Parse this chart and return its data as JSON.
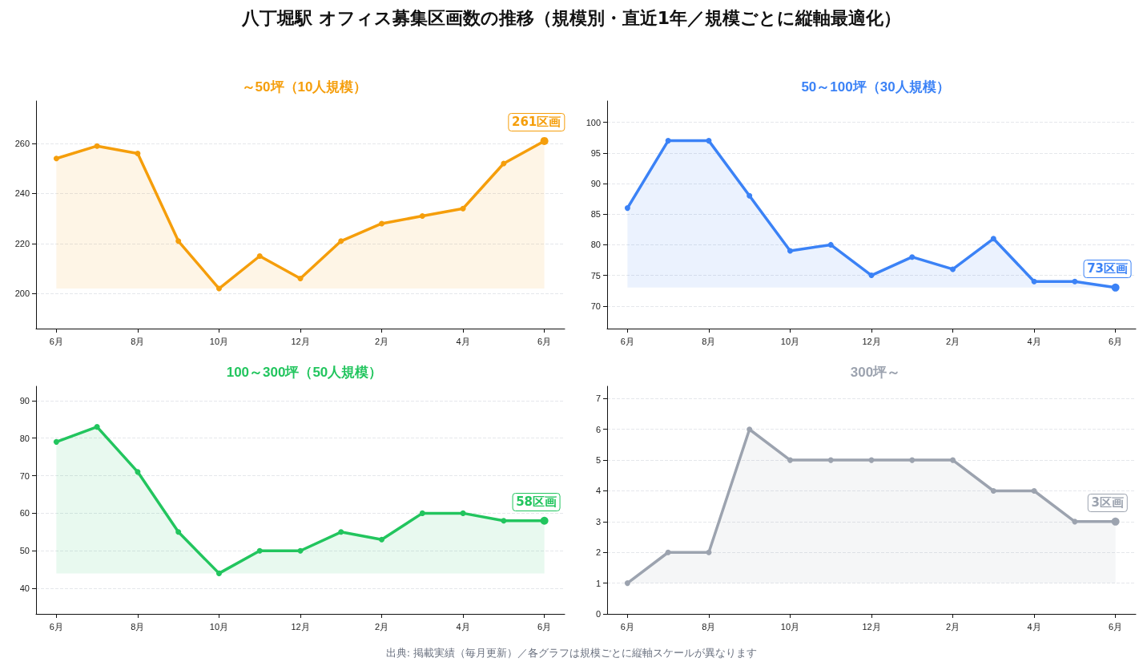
{
  "chart_data": [
    {
      "type": "other",
      "title": "八丁堀駅 オフィス募集区画数の推移（規模別・直近1年／規模ごとに縦軸最適化）",
      "annotations": [
        "出典: 掲載実績（毎月更新）／各グラフは規模ごとに縦軸スケールが異なります"
      ]
    },
    {
      "type": "area",
      "title": "～50坪（10人規模）",
      "categories": [
        "6月",
        null,
        "8月",
        null,
        "10月",
        null,
        "12月",
        null,
        "2月",
        null,
        "4月",
        null,
        "6月"
      ],
      "series": [
        {
          "color": "#f59e0b",
          "values": [
            254,
            259,
            256,
            221,
            202,
            215,
            206,
            221,
            228,
            231,
            234,
            252,
            261
          ]
        }
      ],
      "ylim": [
        186,
        277
      ],
      "yticks": [
        200,
        220,
        240,
        260
      ],
      "grid": "y",
      "marker": "circle",
      "line_style": "solid",
      "annotations": [
        "261区画"
      ]
    },
    {
      "type": "area",
      "title": "50～100坪（30人規模）",
      "categories": [
        "6月",
        null,
        "8月",
        null,
        "10月",
        null,
        "12月",
        null,
        "2月",
        null,
        "4月",
        null,
        "6月"
      ],
      "series": [
        {
          "color": "#3b82f6",
          "values": [
            86,
            97,
            97,
            88,
            79,
            80,
            75,
            78,
            76,
            81,
            74,
            74,
            73
          ]
        }
      ],
      "ylim": [
        66.3,
        103.5
      ],
      "yticks": [
        70,
        75,
        80,
        85,
        90,
        95,
        100
      ],
      "grid": "y",
      "marker": "circle",
      "line_style": "solid",
      "annotations": [
        "73区画"
      ]
    },
    {
      "type": "area",
      "title": "100～300坪（50人規模）",
      "categories": [
        "6月",
        null,
        "8月",
        null,
        "10月",
        null,
        "12月",
        null,
        "2月",
        null,
        "4月",
        null,
        "6月"
      ],
      "series": [
        {
          "color": "#22c55e",
          "values": [
            79,
            83,
            71,
            55,
            44,
            50,
            50,
            55,
            53,
            60,
            60,
            58,
            58
          ]
        }
      ],
      "ylim": [
        33.2,
        93.8
      ],
      "yticks": [
        40,
        50,
        60,
        70,
        80,
        90
      ],
      "grid": "y",
      "marker": "circle",
      "line_style": "solid",
      "annotations": [
        "58区画"
      ]
    },
    {
      "type": "area",
      "title": "300坪～",
      "categories": [
        "6月",
        null,
        "8月",
        null,
        "10月",
        null,
        "12月",
        null,
        "2月",
        null,
        "4月",
        null,
        "6月"
      ],
      "series": [
        {
          "color": "#9ca3af",
          "values": [
            1,
            2,
            2,
            6,
            5,
            5,
            5,
            5,
            5,
            4,
            4,
            3,
            3
          ]
        }
      ],
      "ylim": [
        0,
        7.4
      ],
      "yticks": [
        0,
        1,
        2,
        3,
        4,
        5,
        6,
        7
      ],
      "grid": "y",
      "marker": "circle",
      "line_style": "solid",
      "annotations": [
        "3区画"
      ]
    }
  ]
}
